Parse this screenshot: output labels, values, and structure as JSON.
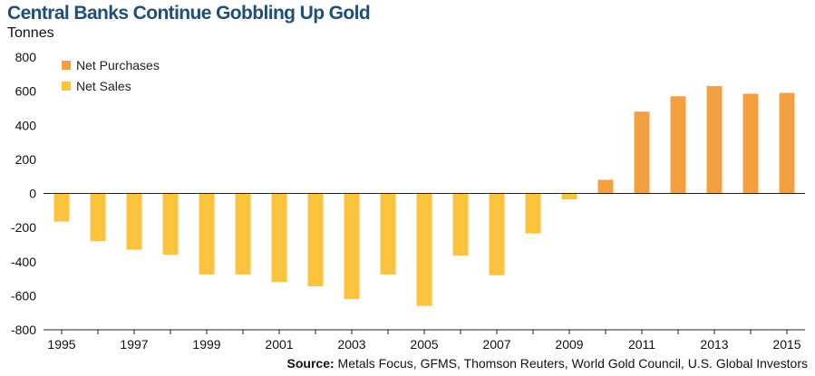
{
  "chart_data": {
    "type": "bar",
    "title": "Central Banks Continue Gobbling Up Gold",
    "ylabel": "Tonnes",
    "xlabel": "",
    "ylim": [
      -800,
      800
    ],
    "yticks": [
      800,
      600,
      400,
      200,
      0,
      -200,
      -400,
      -600,
      -800
    ],
    "ytick_labels": [
      "800",
      "600",
      "400",
      "200",
      "0",
      "-200",
      "-400",
      "-600",
      "-800"
    ],
    "categories": [
      "1995",
      "1996",
      "1997",
      "1998",
      "1999",
      "2000",
      "2001",
      "2002",
      "2003",
      "2004",
      "2005",
      "2006",
      "2007",
      "2008",
      "2009",
      "2010",
      "2011",
      "2012",
      "2013",
      "2014",
      "2015"
    ],
    "xtick_labels": [
      "1995",
      "1997",
      "1999",
      "2001",
      "2003",
      "2005",
      "2007",
      "2009",
      "2011",
      "2013",
      "2015"
    ],
    "series": [
      {
        "name": "Net Purchases",
        "color": "#f5a040",
        "values": [
          null,
          null,
          null,
          null,
          null,
          null,
          null,
          null,
          null,
          null,
          null,
          null,
          null,
          null,
          null,
          80,
          480,
          570,
          630,
          585,
          590
        ]
      },
      {
        "name": "Net Sales",
        "color": "#fcc33c",
        "values": [
          -165,
          -280,
          -330,
          -360,
          -475,
          -475,
          -520,
          -545,
          -620,
          -475,
          -660,
          -365,
          -480,
          -235,
          -35,
          null,
          null,
          null,
          null,
          null,
          null
        ]
      }
    ],
    "legend": "top-left",
    "grid": false
  },
  "source": {
    "label": "Source:",
    "text": "Metals Focus, GFMS, Thomson Reuters, World Gold Council, U.S. Global Investors"
  }
}
